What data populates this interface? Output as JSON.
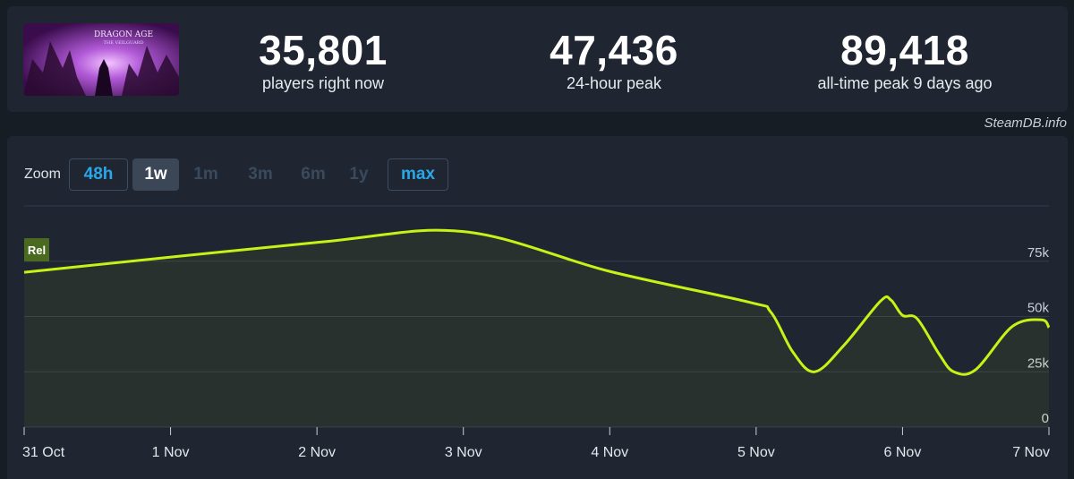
{
  "stats": {
    "current": {
      "value": "35,801",
      "label": "players right now"
    },
    "peak24": {
      "value": "47,436",
      "label": "24-hour peak"
    },
    "alltime": {
      "value": "89,418",
      "label": "all-time peak 9 days ago"
    }
  },
  "credit": "SteamDB.info",
  "zoom": {
    "label": "Zoom",
    "buttons": [
      {
        "label": "48h",
        "state": "outlined"
      },
      {
        "label": "1w",
        "state": "active"
      },
      {
        "label": "1m",
        "state": "disabled"
      },
      {
        "label": "3m",
        "state": "disabled"
      },
      {
        "label": "6m",
        "state": "disabled"
      },
      {
        "label": "1y",
        "state": "disabled"
      },
      {
        "label": "max",
        "state": "outlined"
      }
    ]
  },
  "colors": {
    "line": "#c8f216",
    "grid": "#323c49",
    "text": "#c7d0da",
    "flag": "#4a6a20"
  },
  "chart_data": {
    "type": "line",
    "title": "",
    "xlabel": "",
    "ylabel": "",
    "ylim": [
      0,
      100000
    ],
    "y_ticks": [
      0,
      25000,
      50000,
      75000
    ],
    "y_tick_labels": [
      "0",
      "25k",
      "50k",
      "75k"
    ],
    "x_tick_labels": [
      "31 Oct",
      "1 Nov",
      "2 Nov",
      "3 Nov",
      "4 Nov",
      "5 Nov",
      "6 Nov",
      "7 Nov"
    ],
    "flag": {
      "label": "Rel",
      "x": 0
    },
    "series": [
      {
        "x": [
          0,
          2.0,
          3.0,
          4.0,
          4.95,
          5.1,
          5.25,
          5.4,
          5.6,
          5.85,
          5.92,
          6.0,
          6.1,
          6.25,
          6.35,
          6.5,
          6.75,
          6.95,
          7.0
        ],
        "y": [
          70000,
          83500,
          88400,
          70400,
          56500,
          52000,
          34000,
          25000,
          37000,
          57000,
          57500,
          50500,
          49000,
          33000,
          25000,
          26000,
          45500,
          48500,
          45000
        ]
      }
    ]
  }
}
